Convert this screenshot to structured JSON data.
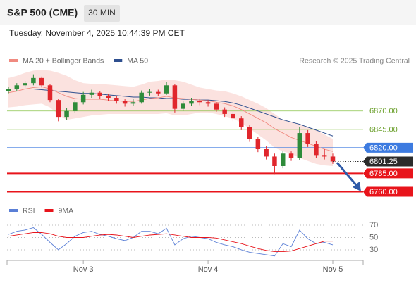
{
  "header": {
    "title": "S&P 500 (CME)",
    "interval": "30 MIN",
    "datetime": "Tuesday, November 4, 2025 10:44:39 PM CET"
  },
  "chart_data": {
    "type": "candlestick",
    "legend": [
      {
        "name": "MA 20 + Bollinger Bands",
        "color": "#f08a80"
      },
      {
        "name": "MA 50",
        "color": "#2e4f8f"
      }
    ],
    "credit": "Research © 2025 Trading Central",
    "categories": [
      null,
      null,
      null,
      null,
      null,
      null,
      null,
      null,
      null,
      "Nov 3",
      null,
      null,
      null,
      null,
      null,
      null,
      null,
      null,
      null,
      null,
      null,
      null,
      null,
      null,
      "Nov 4",
      null,
      null,
      null,
      null,
      null,
      null,
      null,
      null,
      null,
      null,
      null,
      null,
      null,
      null,
      "Nov 5"
    ],
    "ylim": [
      6748,
      6935
    ],
    "up_color": "#2e8b3a",
    "down_color": "#e0262c",
    "candles": [
      [
        6897,
        6903,
        6894,
        6900
      ],
      [
        6900,
        6908,
        6897,
        6905
      ],
      [
        6905,
        6911,
        6902,
        6908
      ],
      [
        6908,
        6920,
        6905,
        6915
      ],
      [
        6915,
        6917,
        6902,
        6905
      ],
      [
        6905,
        6907,
        6882,
        6885
      ],
      [
        6885,
        6887,
        6856,
        6862
      ],
      [
        6862,
        6874,
        6858,
        6870
      ],
      [
        6870,
        6885,
        6867,
        6882
      ],
      [
        6882,
        6896,
        6879,
        6892
      ],
      [
        6892,
        6899,
        6888,
        6895
      ],
      [
        6895,
        6897,
        6886,
        6890
      ],
      [
        6890,
        6893,
        6884,
        6888
      ],
      [
        6888,
        6890,
        6880,
        6884
      ],
      [
        6884,
        6886,
        6876,
        6880
      ],
      [
        6880,
        6886,
        6877,
        6882
      ],
      [
        6882,
        6898,
        6880,
        6895
      ],
      [
        6895,
        6900,
        6891,
        6896
      ],
      [
        6896,
        6899,
        6890,
        6894
      ],
      [
        6894,
        6910,
        6892,
        6905
      ],
      [
        6905,
        6907,
        6868,
        6873
      ],
      [
        6873,
        6884,
        6870,
        6880
      ],
      [
        6880,
        6888,
        6877,
        6884
      ],
      [
        6884,
        6887,
        6878,
        6882
      ],
      [
        6882,
        6885,
        6876,
        6880
      ],
      [
        6880,
        6882,
        6869,
        6872
      ],
      [
        6872,
        6875,
        6862,
        6866
      ],
      [
        6866,
        6869,
        6856,
        6860
      ],
      [
        6860,
        6863,
        6844,
        6848
      ],
      [
        6848,
        6851,
        6828,
        6832
      ],
      [
        6832,
        6835,
        6814,
        6818
      ],
      [
        6818,
        6822,
        6804,
        6808
      ],
      [
        6808,
        6812,
        6784,
        6795
      ],
      [
        6795,
        6816,
        6792,
        6812
      ],
      [
        6812,
        6815,
        6802,
        6806
      ],
      [
        6806,
        6848,
        6803,
        6840
      ],
      [
        6840,
        6844,
        6821,
        6825
      ],
      [
        6825,
        6829,
        6806,
        6810
      ],
      [
        6810,
        6818,
        6804,
        6808
      ],
      [
        6808,
        6812,
        6798,
        6801.25
      ]
    ],
    "ma20": [
      6895,
      6897,
      6900,
      6902,
      6903,
      6900,
      6895,
      6890,
      6887,
      6886,
      6886,
      6886,
      6885,
      6884,
      6883,
      6883,
      6885,
      6887,
      6888,
      6890,
      6888,
      6887,
      6886,
      6885,
      6884,
      6882,
      6880,
      6877,
      6872,
      6866,
      6860,
      6854,
      6846,
      6840,
      6834,
      6830,
      6826,
      6822,
      6818,
      6815
    ],
    "band_upper": [
      6915,
      6918,
      6922,
      6925,
      6926,
      6925,
      6922,
      6918,
      6912,
      6908,
      6907,
      6907,
      6906,
      6905,
      6904,
      6903,
      6906,
      6910,
      6911,
      6913,
      6912,
      6910,
      6906,
      6902,
      6900,
      6898,
      6897,
      6894,
      6890,
      6885,
      6880,
      6874,
      6866,
      6858,
      6855,
      6852,
      6848,
      6844,
      6838,
      6832
    ],
    "band_lower": [
      6875,
      6876,
      6878,
      6879,
      6880,
      6875,
      6865,
      6858,
      6860,
      6862,
      6864,
      6865,
      6866,
      6866,
      6866,
      6866,
      6866,
      6866,
      6866,
      6867,
      6864,
      6864,
      6866,
      6868,
      6868,
      6866,
      6863,
      6860,
      6854,
      6846,
      6838,
      6830,
      6820,
      6815,
      6812,
      6806,
      6802,
      6798,
      6796,
      6795
    ],
    "ma50": [
      null,
      null,
      null,
      6900,
      6899,
      6898,
      6897,
      6896,
      6895,
      6894,
      6894,
      6893,
      6892,
      6891,
      6890,
      6889,
      6889,
      6888,
      6888,
      6887,
      6887,
      6886,
      6886,
      6885,
      6885,
      6884,
      6883,
      6881,
      6878,
      6874,
      6870,
      6866,
      6862,
      6858,
      6855,
      6852,
      6848,
      6844,
      6840,
      6836
    ],
    "levels": [
      {
        "value": 6870,
        "label": "6870.00",
        "color": "#8bc34a",
        "box": false
      },
      {
        "value": 6845,
        "label": "6845.00",
        "color": "#8bc34a",
        "box": false
      },
      {
        "value": 6820,
        "label": "6820.00",
        "color": "#3d7be0",
        "box": true
      },
      {
        "value": 6785,
        "label": "6785.00",
        "color": "#e8141b",
        "box": true
      },
      {
        "value": 6760,
        "label": "6760.00",
        "color": "#e8141b",
        "box": true
      }
    ],
    "last": {
      "value": 6801.25,
      "label": "6801.25"
    },
    "rsi": {
      "legend": [
        {
          "name": "RSI",
          "color": "#5a7fd6"
        },
        {
          "name": "9MA",
          "color": "#e8141b"
        }
      ],
      "ylim": [
        15,
        80
      ],
      "yticks": [
        70,
        50,
        30
      ],
      "values": [
        55,
        60,
        62,
        66,
        55,
        42,
        30,
        40,
        52,
        58,
        60,
        55,
        52,
        48,
        45,
        50,
        60,
        60,
        56,
        65,
        38,
        48,
        52,
        50,
        48,
        42,
        38,
        35,
        30,
        26,
        24,
        22,
        20,
        40,
        35,
        62,
        48,
        40,
        42,
        38
      ],
      "ma": [
        52,
        54,
        56,
        58,
        58,
        56,
        52,
        50,
        50,
        50,
        52,
        54,
        55,
        54,
        52,
        50,
        52,
        54,
        55,
        56,
        54,
        52,
        50,
        50,
        50,
        49,
        46,
        43,
        40,
        36,
        32,
        29,
        27,
        27,
        28,
        32,
        36,
        40,
        44,
        44
      ]
    }
  }
}
